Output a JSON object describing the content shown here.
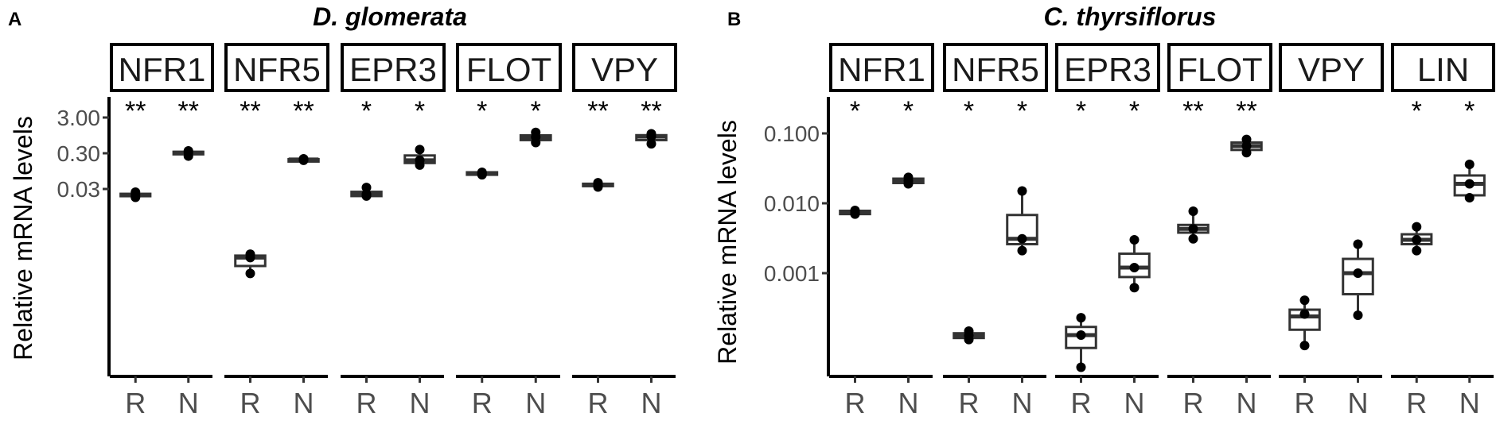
{
  "ylabel": "Relative mRNA levels",
  "chart_data": [
    {
      "type": "boxplot",
      "panel_label": "A",
      "title": "D. glomerata",
      "ylabel": "Relative mRNA levels",
      "yscale": "log10",
      "ylim": [
        7.5e-05,
        6
      ],
      "y_ticks": [
        3.0,
        0.3,
        0.03
      ],
      "y_tick_labels": [
        "3.00",
        "0.30",
        "0.03"
      ],
      "categories": [
        "R",
        "N"
      ],
      "facets": [
        {
          "gene": "NFR1",
          "groups": [
            {
              "x": "R",
              "sig": "**",
              "min": 0.0175,
              "q1": 0.019,
              "median": 0.0205,
              "q3": 0.022,
              "max": 0.0245,
              "points": [
                0.0175,
                0.0205,
                0.0245
              ]
            },
            {
              "x": "N",
              "sig": "**",
              "min": 0.25,
              "q1": 0.28,
              "median": 0.31,
              "q3": 0.33,
              "max": 0.35,
              "points": [
                0.25,
                0.31,
                0.35
              ]
            }
          ]
        },
        {
          "gene": "NFR5",
          "groups": [
            {
              "x": "R",
              "sig": "**",
              "min": 0.00013,
              "q1": 0.00021,
              "median": 0.00036,
              "q3": 0.00041,
              "max": 0.00045,
              "points": [
                0.00013,
                0.00036,
                0.00045
              ]
            },
            {
              "x": "N",
              "sig": "**",
              "min": 0.18,
              "q1": 0.19,
              "median": 0.2,
              "q3": 0.205,
              "max": 0.21,
              "points": [
                0.19,
                0.2,
                0.21
              ]
            }
          ]
        },
        {
          "gene": "EPR3",
          "groups": [
            {
              "x": "R",
              "sig": "*",
              "min": 0.018,
              "q1": 0.019,
              "median": 0.0215,
              "q3": 0.025,
              "max": 0.033,
              "points": [
                0.019,
                0.0215,
                0.033
              ]
            },
            {
              "x": "N",
              "sig": "*",
              "min": 0.14,
              "q1": 0.16,
              "median": 0.19,
              "q3": 0.26,
              "max": 0.38,
              "points": [
                0.14,
                0.19,
                0.38
              ]
            }
          ]
        },
        {
          "gene": "FLOT",
          "groups": [
            {
              "x": "R",
              "sig": "*",
              "min": 0.07,
              "q1": 0.075,
              "median": 0.081,
              "q3": 0.088,
              "max": 0.092,
              "points": [
                0.075,
                0.081,
                0.088
              ]
            },
            {
              "x": "N",
              "sig": "*",
              "min": 0.6,
              "q1": 0.7,
              "median": 0.85,
              "q3": 0.95,
              "max": 1.15,
              "points": [
                0.6,
                0.85,
                1.15
              ]
            }
          ]
        },
        {
          "gene": "VPY",
          "groups": [
            {
              "x": "R",
              "sig": "**",
              "min": 0.033,
              "q1": 0.036,
              "median": 0.039,
              "q3": 0.042,
              "max": 0.046,
              "points": [
                0.034,
                0.039,
                0.045
              ]
            },
            {
              "x": "N",
              "sig": "**",
              "min": 0.55,
              "q1": 0.7,
              "median": 0.88,
              "q3": 0.96,
              "max": 1.05,
              "points": [
                0.55,
                0.88,
                1.05
              ]
            }
          ]
        }
      ]
    },
    {
      "type": "boxplot",
      "panel_label": "B",
      "title": "C. thyrsiflorus",
      "ylabel": "Relative mRNA levels",
      "yscale": "log10",
      "ylim": [
        3.6e-05,
        0.3
      ],
      "y_ticks": [
        0.1,
        0.01,
        0.001
      ],
      "y_tick_labels": [
        "0.100",
        "0.010",
        "0.001"
      ],
      "categories": [
        "R",
        "N"
      ],
      "facets": [
        {
          "gene": "NFR1",
          "groups": [
            {
              "x": "R",
              "sig": "*",
              "min": 0.0068,
              "q1": 0.007,
              "median": 0.0074,
              "q3": 0.0078,
              "max": 0.0082,
              "points": [
                0.007,
                0.0074,
                0.0079
              ]
            },
            {
              "x": "N",
              "sig": "*",
              "min": 0.0185,
              "q1": 0.0195,
              "median": 0.021,
              "q3": 0.0225,
              "max": 0.024,
              "points": [
                0.019,
                0.021,
                0.0235
              ]
            }
          ]
        },
        {
          "gene": "NFR5",
          "groups": [
            {
              "x": "R",
              "sig": "*",
              "min": 0.00011,
              "q1": 0.000118,
              "median": 0.000128,
              "q3": 0.000138,
              "max": 0.000152,
              "points": [
                0.000112,
                0.000128,
                0.000148
              ]
            },
            {
              "x": "N",
              "sig": "*",
              "min": 0.0021,
              "q1": 0.0026,
              "median": 0.0031,
              "q3": 0.0068,
              "max": 0.015,
              "points": [
                0.0021,
                0.0031,
                0.015
              ]
            }
          ]
        },
        {
          "gene": "EPR3",
          "groups": [
            {
              "x": "R",
              "sig": "*",
              "min": 4.5e-05,
              "q1": 8.5e-05,
              "median": 0.00013,
              "q3": 0.00017,
              "max": 0.00023,
              "points": [
                4.5e-05,
                0.00013,
                0.00023
              ]
            },
            {
              "x": "N",
              "sig": "*",
              "min": 0.00062,
              "q1": 0.00088,
              "median": 0.0012,
              "q3": 0.0019,
              "max": 0.003,
              "points": [
                0.00062,
                0.0012,
                0.003
              ]
            }
          ]
        },
        {
          "gene": "FLOT",
          "groups": [
            {
              "x": "R",
              "sig": "**",
              "min": 0.0031,
              "q1": 0.0038,
              "median": 0.0043,
              "q3": 0.0049,
              "max": 0.0077,
              "points": [
                0.0031,
                0.0043,
                0.0077
              ]
            },
            {
              "x": "N",
              "sig": "**",
              "min": 0.052,
              "q1": 0.058,
              "median": 0.066,
              "q3": 0.074,
              "max": 0.082,
              "points": [
                0.053,
                0.066,
                0.082
              ]
            }
          ]
        },
        {
          "gene": "VPY",
          "groups": [
            {
              "x": "R",
              "sig": "",
              "min": 9.2e-05,
              "q1": 0.000155,
              "median": 0.00024,
              "q3": 0.0003,
              "max": 0.00041,
              "points": [
                9.2e-05,
                0.00026,
                0.00041
              ]
            },
            {
              "x": "N",
              "sig": "",
              "min": 0.00025,
              "q1": 0.0005,
              "median": 0.001,
              "q3": 0.0016,
              "max": 0.0026,
              "points": [
                0.00025,
                0.001,
                0.0026
              ]
            }
          ]
        },
        {
          "gene": "LIN",
          "groups": [
            {
              "x": "R",
              "sig": "*",
              "min": 0.0021,
              "q1": 0.0026,
              "median": 0.003,
              "q3": 0.0036,
              "max": 0.0046,
              "points": [
                0.0021,
                0.003,
                0.0046
              ]
            },
            {
              "x": "N",
              "sig": "*",
              "min": 0.011,
              "q1": 0.013,
              "median": 0.019,
              "q3": 0.025,
              "max": 0.036,
              "points": [
                0.012,
                0.019,
                0.036
              ]
            }
          ]
        }
      ]
    }
  ]
}
